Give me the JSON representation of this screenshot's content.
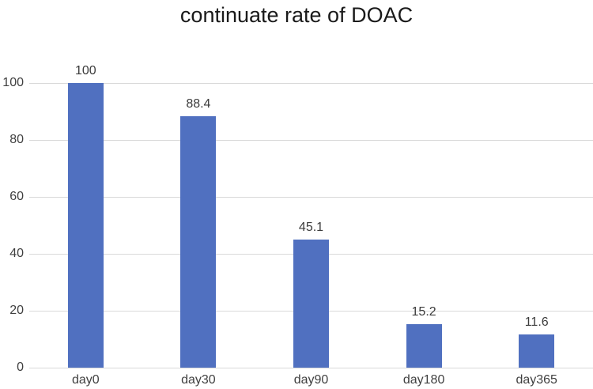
{
  "chart_data": {
    "type": "bar",
    "title": "continuate rate of DOAC",
    "categories": [
      "day0",
      "day30",
      "day90",
      "day180",
      "day365"
    ],
    "values": [
      100,
      88.4,
      45.1,
      15.2,
      11.6
    ],
    "data_labels": [
      "100",
      "88.4",
      "45.1",
      "15.2",
      "11.6"
    ],
    "xlabel": "",
    "ylabel": "",
    "ylim": [
      0,
      100
    ],
    "yticks": [
      0,
      20,
      40,
      60,
      80,
      100
    ],
    "grid": "horizontal",
    "legend": "none",
    "colors": {
      "bar": "#5070c0",
      "gridline": "#d9d9d9",
      "axis_line": "#d9d9d9",
      "tick_text": "#404040",
      "data_label_text": "#3b3b3b",
      "title_text": "#1a1a1a"
    }
  }
}
